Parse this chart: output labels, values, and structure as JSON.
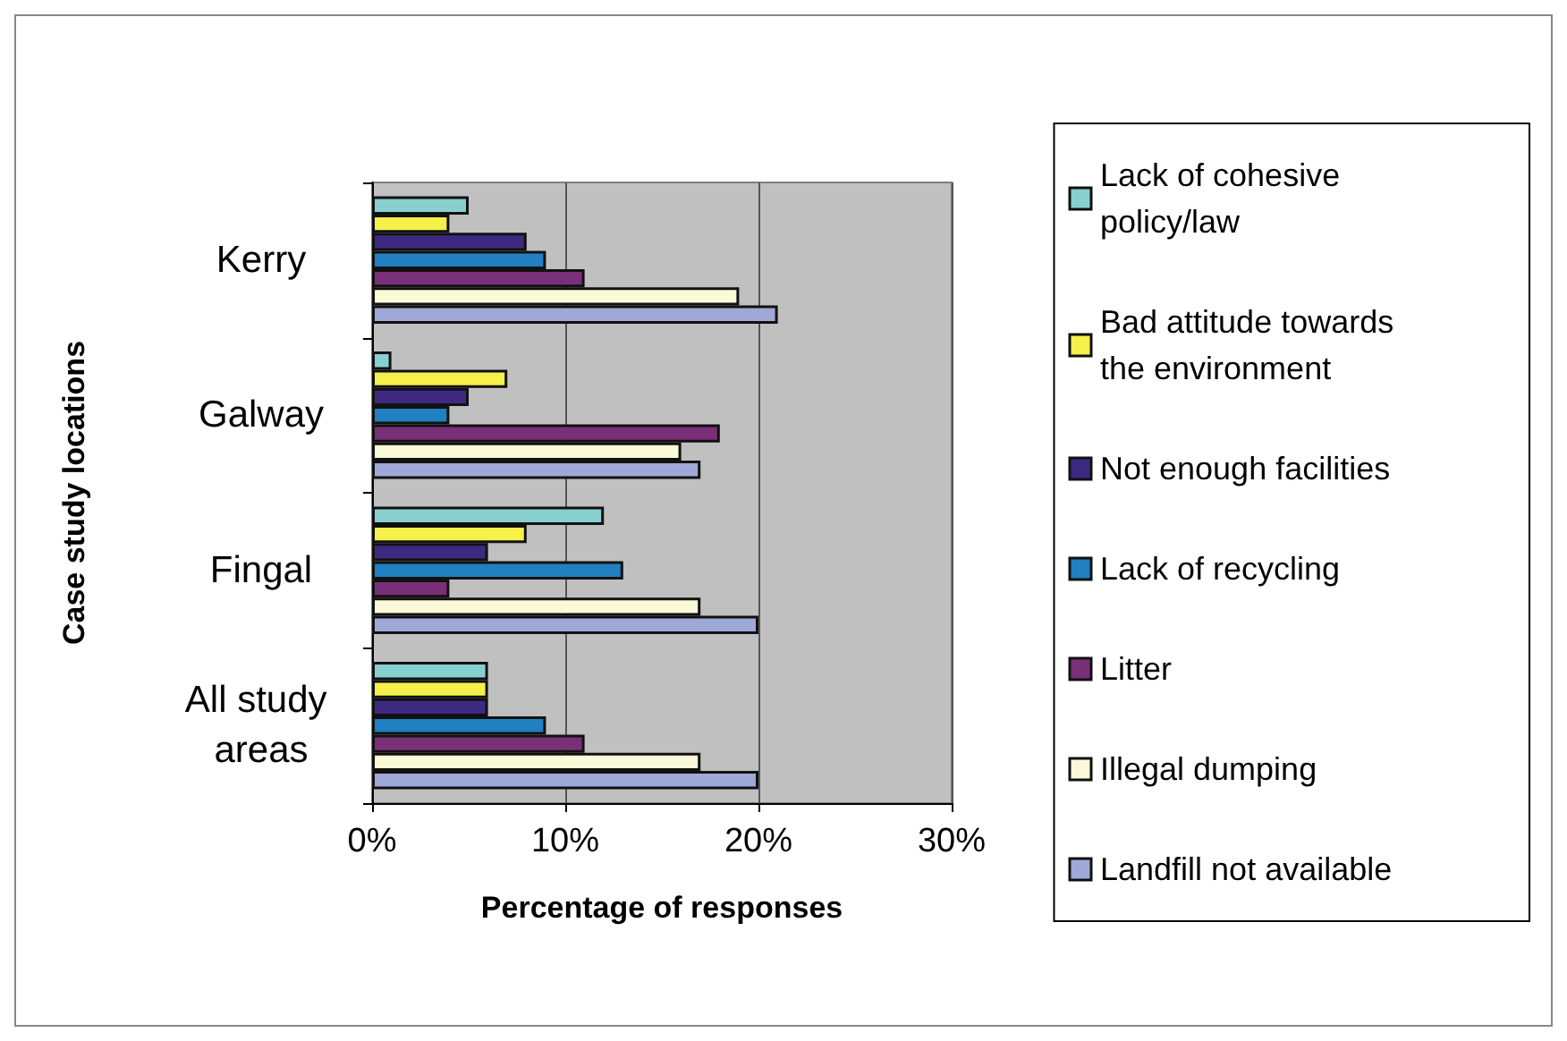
{
  "chart_data": {
    "type": "bar",
    "orientation": "horizontal",
    "xlabel": "Percentage of responses",
    "ylabel": "Case study locations",
    "categories": [
      "Kerry",
      "Galway",
      "Fingal",
      "All study areas"
    ],
    "series": [
      {
        "name": "Lack of cohesive policy/law",
        "color": "#88d0d0",
        "values": [
          5,
          1,
          12,
          6
        ]
      },
      {
        "name": "Bad attitude towards the environment",
        "color": "#f5f04a",
        "values": [
          4,
          7,
          8,
          6
        ]
      },
      {
        "name": "Not enough facilities",
        "color": "#3d2a80",
        "values": [
          8,
          5,
          6,
          6
        ]
      },
      {
        "name": "Lack of recycling",
        "color": "#2080c0",
        "values": [
          9,
          4,
          13,
          9
        ]
      },
      {
        "name": "Litter",
        "color": "#7a3078",
        "values": [
          11,
          18,
          4,
          11
        ]
      },
      {
        "name": "Illegal dumping",
        "color": "#fafad8",
        "values": [
          19,
          16,
          17,
          17
        ]
      },
      {
        "name": "Landfill not available",
        "color": "#a0a8d8",
        "values": [
          21,
          17,
          20,
          20
        ]
      }
    ],
    "xlim": [
      0,
      30
    ],
    "xticks": [
      {
        "value": 0,
        "label": "0%"
      },
      {
        "value": 10,
        "label": "10%"
      },
      {
        "value": 20,
        "label": "20%"
      },
      {
        "value": 30,
        "label": "30%"
      }
    ],
    "grid": "x",
    "legend": "right"
  }
}
